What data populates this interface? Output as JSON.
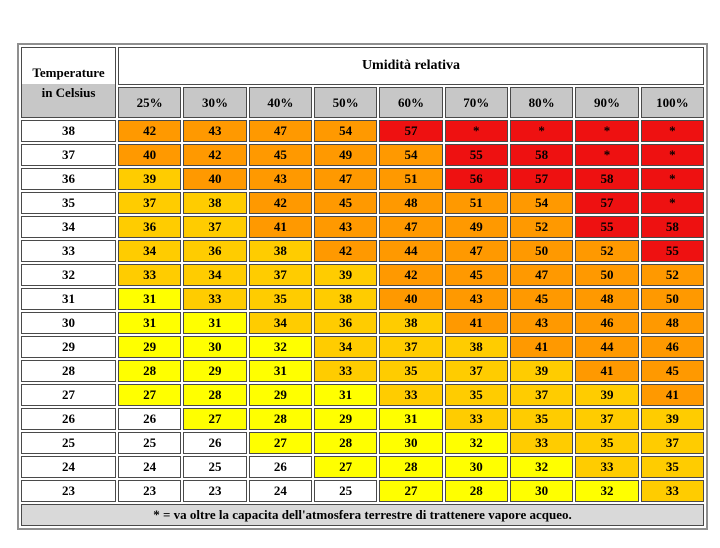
{
  "table": {
    "corner_line1": "Temperature",
    "corner_line2": "in Celsius",
    "humidity_title": "Umidità relativa",
    "footnote": "* = va oltre la capacita dell'atmosfera terrestre di trattenere vapore acqueo.",
    "colors": {
      "white": "#ffffff",
      "yellow": "#ffff00",
      "gold": "#ffcc00",
      "orange": "#ff9900",
      "red": "#ee1111",
      "header_gray": "#c7c7c7",
      "footer_gray": "#d9d9d9",
      "cell_border": "#4a4a4a",
      "outer_border": "#8f8f8f"
    },
    "thresholds": {
      "yellow_min": 27,
      "gold_min": 33,
      "orange_min": 40,
      "red_min": 55
    }
  },
  "chart_data": {
    "type": "heatmap",
    "title": "Umidità relativa",
    "row_axis_label": "Temperature in Celsius",
    "columns": [
      "25%",
      "30%",
      "40%",
      "50%",
      "60%",
      "70%",
      "80%",
      "90%",
      "100%"
    ],
    "row_labels": [
      "38",
      "37",
      "36",
      "35",
      "34",
      "33",
      "32",
      "31",
      "30",
      "29",
      "28",
      "27",
      "26",
      "25",
      "24",
      "23"
    ],
    "values": [
      [
        "42",
        "43",
        "47",
        "54",
        "57",
        "*",
        "*",
        "*",
        "*"
      ],
      [
        "40",
        "42",
        "45",
        "49",
        "54",
        "55",
        "58",
        "*",
        "*"
      ],
      [
        "39",
        "40",
        "43",
        "47",
        "51",
        "56",
        "57",
        "58",
        "*"
      ],
      [
        "37",
        "38",
        "42",
        "45",
        "48",
        "51",
        "54",
        "57",
        "*"
      ],
      [
        "36",
        "37",
        "41",
        "43",
        "47",
        "49",
        "52",
        "55",
        "58"
      ],
      [
        "34",
        "36",
        "38",
        "42",
        "44",
        "47",
        "50",
        "52",
        "55"
      ],
      [
        "33",
        "34",
        "37",
        "39",
        "42",
        "45",
        "47",
        "50",
        "52"
      ],
      [
        "31",
        "33",
        "35",
        "38",
        "40",
        "43",
        "45",
        "48",
        "50"
      ],
      [
        "31",
        "31",
        "34",
        "36",
        "38",
        "41",
        "43",
        "46",
        "48"
      ],
      [
        "29",
        "30",
        "32",
        "34",
        "37",
        "38",
        "41",
        "44",
        "46"
      ],
      [
        "28",
        "29",
        "31",
        "33",
        "35",
        "37",
        "39",
        "41",
        "45"
      ],
      [
        "27",
        "28",
        "29",
        "31",
        "33",
        "35",
        "37",
        "39",
        "41"
      ],
      [
        "26",
        "27",
        "28",
        "29",
        "31",
        "33",
        "35",
        "37",
        "39"
      ],
      [
        "25",
        "26",
        "27",
        "28",
        "30",
        "32",
        "33",
        "35",
        "37"
      ],
      [
        "24",
        "25",
        "26",
        "27",
        "28",
        "30",
        "32",
        "33",
        "35"
      ],
      [
        "23",
        "23",
        "24",
        "25",
        "27",
        "28",
        "30",
        "32",
        "33"
      ]
    ],
    "legend": "white <=26, yellow 27-32, gold 33-39, orange 40-54, red >=55 or *"
  }
}
